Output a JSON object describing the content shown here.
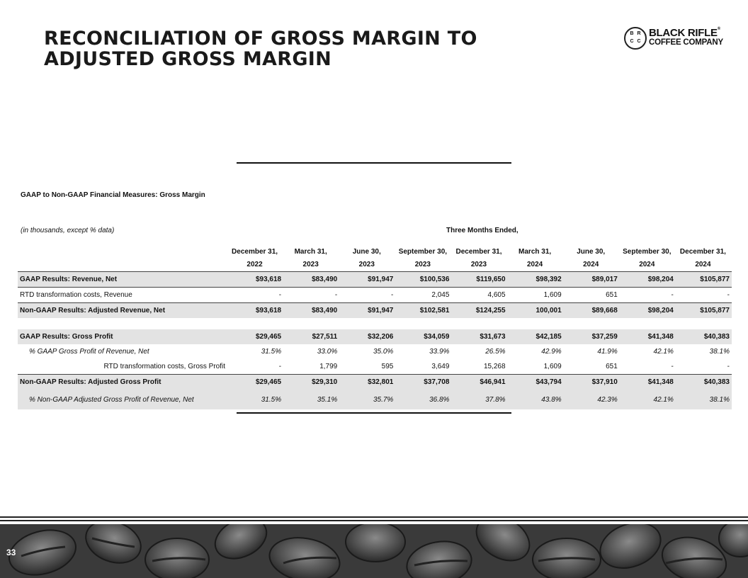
{
  "header": {
    "title": "RECONCILIATION OF GROSS MARGIN TO ADJUSTED GROSS MARGIN",
    "logo": {
      "letters": [
        "B",
        "R",
        "C",
        "C"
      ],
      "line1": "BLACK RIFLE",
      "mark": "®",
      "line2": "COFFEE COMPANY"
    }
  },
  "table": {
    "caption": "GAAP to Non-GAAP Financial Measures: Gross Margin",
    "unit_note": "(in thousands, except % data)",
    "period_header": "Three Months Ended,",
    "columns": [
      [
        "December 31,",
        "2022"
      ],
      [
        "March 31,",
        "2023"
      ],
      [
        "June 30,",
        "2023"
      ],
      [
        "September 30,",
        "2023"
      ],
      [
        "December 31,",
        "2023"
      ],
      [
        "March 31,",
        "2024"
      ],
      [
        "June 30,",
        "2024"
      ],
      [
        "September 30,",
        "2024"
      ],
      [
        "December 31,",
        "2024"
      ]
    ],
    "rows": [
      [
        "GAAP Results: Revenue, Net",
        "$93,618",
        "$83,490",
        "$91,947",
        "$100,536",
        "$119,650",
        "$98,392",
        "$89,017",
        "$98,204",
        "$105,877"
      ],
      [
        "RTD transformation costs, Revenue",
        "-",
        "-",
        "-",
        "2,045",
        "4,605",
        "1,609",
        "651",
        "-",
        "-"
      ],
      [
        "Non-GAAP Results: Adjusted Revenue, Net",
        "$93,618",
        "$83,490",
        "$91,947",
        "$102,581",
        "$124,255",
        "100,001",
        "$89,668",
        "$98,204",
        "$105,877"
      ],
      [
        "GAAP Results: Gross Profit",
        "$29,465",
        "$27,511",
        "$32,206",
        "$34,059",
        "$31,673",
        "$42,185",
        "$37,259",
        "$41,348",
        "$40,383"
      ],
      [
        "% GAAP Gross Profit of Revenue, Net",
        "31.5%",
        "33.0%",
        "35.0%",
        "33.9%",
        "26.5%",
        "42.9%",
        "41.9%",
        "42.1%",
        "38.1%"
      ],
      [
        "RTD transformation costs, Gross Profit",
        "-",
        "1,799",
        "595",
        "3,649",
        "15,268",
        "1,609",
        "651",
        "-",
        "-"
      ],
      [
        "Non-GAAP Results: Adjusted Gross Profit",
        "$29,465",
        "$29,310",
        "$32,801",
        "$37,708",
        "$46,941",
        "$43,794",
        "$37,910",
        "$41,348",
        "$40,383"
      ],
      [
        "% Non-GAAP Adjusted Gross Profit of Revenue, Net",
        "31.5%",
        "35.1%",
        "35.7%",
        "36.8%",
        "37.8%",
        "43.8%",
        "42.3%",
        "42.1%",
        "38.1%"
      ]
    ]
  },
  "footer": {
    "page_number": "33"
  }
}
